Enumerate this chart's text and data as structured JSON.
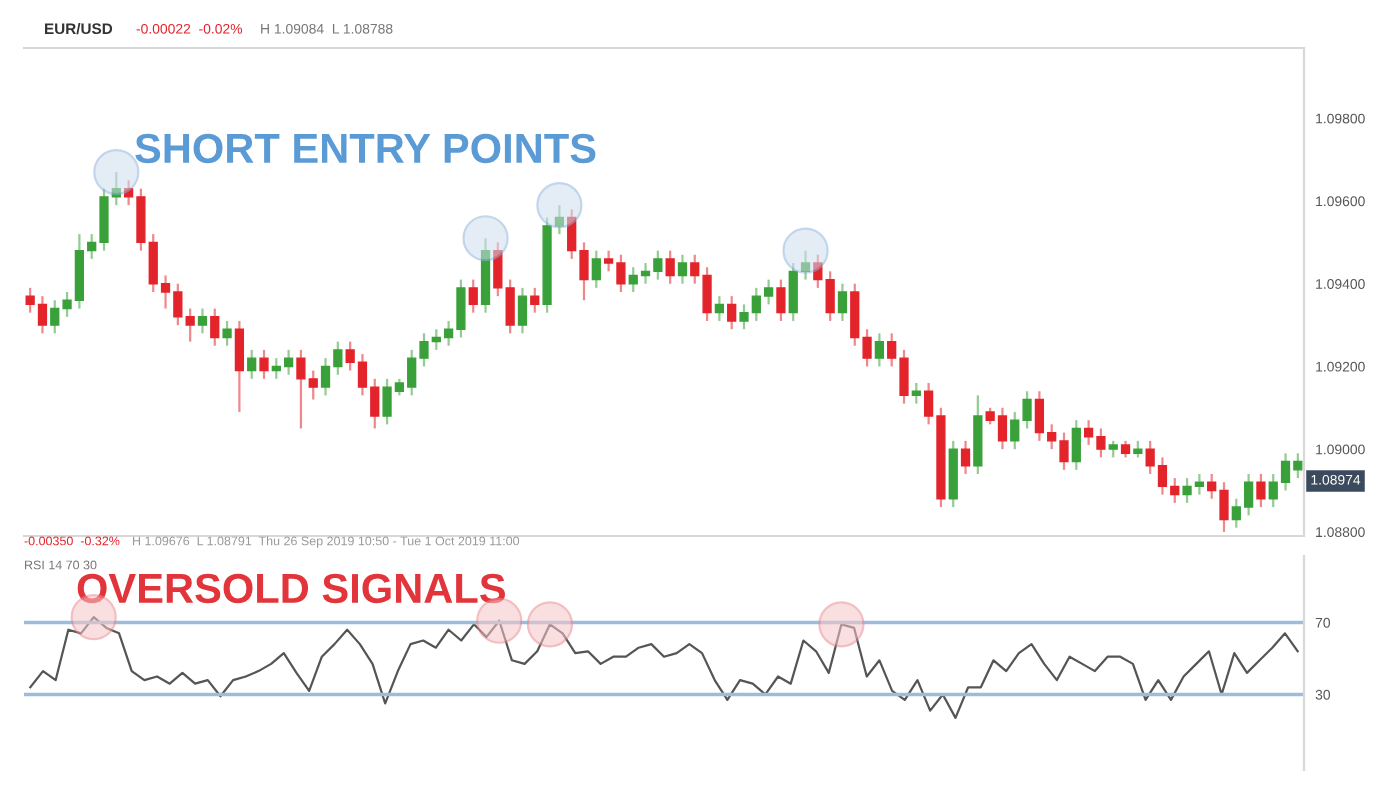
{
  "chart_data": [
    {
      "type": "candlestick",
      "annotations": [
        "EUR/USD",
        "-0.00022  -0.02%",
        "H 1.09084  L 1.08788",
        "SHORT ENTRY POINTS",
        "1.08974"
      ],
      "categories": [
        null,
        null,
        null,
        null,
        null,
        null,
        null,
        null,
        null,
        null,
        null,
        null,
        null,
        null,
        null,
        null,
        null,
        null,
        null,
        null,
        null,
        null,
        null,
        null,
        null,
        null,
        null,
        null,
        null,
        null,
        null,
        null,
        null,
        null,
        null,
        null,
        null,
        null,
        null,
        null,
        null,
        null,
        null,
        null,
        null,
        null,
        null,
        null,
        null,
        null,
        null,
        null,
        null,
        null,
        null,
        null,
        null,
        null,
        null,
        null,
        null,
        null,
        null,
        null,
        null,
        null,
        null,
        null,
        null,
        null,
        null,
        null,
        null,
        null,
        null,
        null,
        null,
        null,
        null,
        null,
        null,
        null,
        null,
        null,
        null,
        null,
        null,
        null,
        null,
        null,
        null,
        null,
        null,
        null,
        null,
        null,
        null,
        null,
        null,
        null,
        null,
        null,
        null,
        null
      ],
      "ohlc": [
        [
          1.0937,
          1.0939,
          1.0933,
          1.0935
        ],
        [
          1.0935,
          1.0937,
          1.0928,
          1.093
        ],
        [
          1.093,
          1.0936,
          1.0928,
          1.0934
        ],
        [
          1.0934,
          1.0938,
          1.0932,
          1.0936
        ],
        [
          1.0936,
          1.0952,
          1.0934,
          1.0948
        ],
        [
          1.0948,
          1.0952,
          1.0946,
          1.095
        ],
        [
          1.095,
          1.0963,
          1.0948,
          1.0961
        ],
        [
          1.0961,
          1.0967,
          1.0959,
          1.0963
        ],
        [
          1.0963,
          1.0965,
          1.0959,
          1.0961
        ],
        [
          1.0961,
          1.0963,
          1.0948,
          1.095
        ],
        [
          1.095,
          1.0952,
          1.0938,
          1.094
        ],
        [
          1.094,
          1.0942,
          1.0934,
          1.0938
        ],
        [
          1.0938,
          1.094,
          1.093,
          1.0932
        ],
        [
          1.0932,
          1.0934,
          1.0926,
          1.093
        ],
        [
          1.093,
          1.0934,
          1.0928,
          1.0932
        ],
        [
          1.0932,
          1.0934,
          1.0925,
          1.0927
        ],
        [
          1.0927,
          1.0931,
          1.0925,
          1.0929
        ],
        [
          1.0929,
          1.0931,
          1.0909,
          1.0919
        ],
        [
          1.0919,
          1.0924,
          1.0917,
          1.0922
        ],
        [
          1.0922,
          1.0924,
          1.0917,
          1.0919
        ],
        [
          1.0919,
          1.0922,
          1.0917,
          1.092
        ],
        [
          1.092,
          1.0924,
          1.0918,
          1.0922
        ],
        [
          1.0922,
          1.0924,
          1.0905,
          1.0917
        ],
        [
          1.0917,
          1.0919,
          1.0912,
          1.0915
        ],
        [
          1.0915,
          1.0922,
          1.0913,
          1.092
        ],
        [
          1.092,
          1.0926,
          1.0918,
          1.0924
        ],
        [
          1.0924,
          1.0926,
          1.0919,
          1.0921
        ],
        [
          1.0921,
          1.0923,
          1.0913,
          1.0915
        ],
        [
          1.0915,
          1.0917,
          1.0905,
          1.0908
        ],
        [
          1.0908,
          1.0917,
          1.0906,
          1.0915
        ],
        [
          1.0914,
          1.0917,
          1.0913,
          1.0916
        ],
        [
          1.0915,
          1.0924,
          1.0913,
          1.0922
        ],
        [
          1.0922,
          1.0928,
          1.092,
          1.0926
        ],
        [
          1.0926,
          1.0929,
          1.0924,
          1.0927
        ],
        [
          1.0927,
          1.0931,
          1.0925,
          1.0929
        ],
        [
          1.0929,
          1.0941,
          1.0927,
          1.0939
        ],
        [
          1.0939,
          1.0941,
          1.0933,
          1.0935
        ],
        [
          1.0935,
          1.0951,
          1.0933,
          1.0948
        ],
        [
          1.0948,
          1.095,
          1.0937,
          1.0939
        ],
        [
          1.0939,
          1.0941,
          1.0928,
          1.093
        ],
        [
          1.093,
          1.0939,
          1.0928,
          1.0937
        ],
        [
          1.0937,
          1.0939,
          1.0933,
          1.0935
        ],
        [
          1.0935,
          1.0956,
          1.0933,
          1.0954
        ],
        [
          1.0954,
          1.0959,
          1.0952,
          1.0956
        ],
        [
          1.0956,
          1.0958,
          1.0946,
          1.0948
        ],
        [
          1.0948,
          1.095,
          1.0936,
          1.0941
        ],
        [
          1.0941,
          1.0948,
          1.0939,
          1.0946
        ],
        [
          1.0946,
          1.0948,
          1.0943,
          1.0945
        ],
        [
          1.0945,
          1.0947,
          1.0938,
          1.094
        ],
        [
          1.094,
          1.0944,
          1.0938,
          1.0942
        ],
        [
          1.0942,
          1.0945,
          1.094,
          1.0943
        ],
        [
          1.0943,
          1.0948,
          1.0941,
          1.0946
        ],
        [
          1.0946,
          1.0948,
          1.094,
          1.0942
        ],
        [
          1.0942,
          1.0947,
          1.094,
          1.0945
        ],
        [
          1.0945,
          1.0947,
          1.094,
          1.0942
        ],
        [
          1.0942,
          1.0944,
          1.0931,
          1.0933
        ],
        [
          1.0933,
          1.0937,
          1.0931,
          1.0935
        ],
        [
          1.0935,
          1.0937,
          1.0929,
          1.0931
        ],
        [
          1.0931,
          1.0935,
          1.0929,
          1.0933
        ],
        [
          1.0933,
          1.0939,
          1.0931,
          1.0937
        ],
        [
          1.0937,
          1.0941,
          1.0935,
          1.0939
        ],
        [
          1.0939,
          1.0941,
          1.0931,
          1.0933
        ],
        [
          1.0933,
          1.0945,
          1.0931,
          1.0943
        ],
        [
          1.0943,
          1.0948,
          1.0941,
          1.0945
        ],
        [
          1.0945,
          1.0947,
          1.0939,
          1.0941
        ],
        [
          1.0941,
          1.0943,
          1.0931,
          1.0933
        ],
        [
          1.0933,
          1.094,
          1.0931,
          1.0938
        ],
        [
          1.0938,
          1.094,
          1.0925,
          1.0927
        ],
        [
          1.0927,
          1.0929,
          1.092,
          1.0922
        ],
        [
          1.0922,
          1.0928,
          1.092,
          1.0926
        ],
        [
          1.0926,
          1.0928,
          1.092,
          1.0922
        ],
        [
          1.0922,
          1.0924,
          1.0911,
          1.0913
        ],
        [
          1.0913,
          1.0916,
          1.0911,
          1.0914
        ],
        [
          1.0914,
          1.0916,
          1.0906,
          1.0908
        ],
        [
          1.0908,
          1.091,
          1.0886,
          1.0888
        ],
        [
          1.0888,
          1.0902,
          1.0886,
          1.09
        ],
        [
          1.09,
          1.0902,
          1.0894,
          1.0896
        ],
        [
          1.0896,
          1.0913,
          1.0894,
          1.0908
        ],
        [
          1.0909,
          1.091,
          1.0906,
          1.0907
        ],
        [
          1.0908,
          1.091,
          1.09,
          1.0902
        ],
        [
          1.0902,
          1.0909,
          1.09,
          1.0907
        ],
        [
          1.0907,
          1.0914,
          1.0905,
          1.0912
        ],
        [
          1.0912,
          1.0914,
          1.0902,
          1.0904
        ],
        [
          1.0904,
          1.0906,
          1.09,
          1.0902
        ],
        [
          1.0902,
          1.0904,
          1.0895,
          1.0897
        ],
        [
          1.0897,
          1.0907,
          1.0895,
          1.0905
        ],
        [
          1.0905,
          1.0907,
          1.0901,
          1.0903
        ],
        [
          1.0903,
          1.0905,
          1.0898,
          1.09
        ],
        [
          1.09,
          1.0902,
          1.0898,
          1.0901
        ],
        [
          1.0901,
          1.0902,
          1.0898,
          1.0899
        ],
        [
          1.0899,
          1.0902,
          1.0898,
          1.09
        ],
        [
          1.09,
          1.0902,
          1.0894,
          1.0896
        ],
        [
          1.0896,
          1.0898,
          1.0889,
          1.0891
        ],
        [
          1.0891,
          1.0893,
          1.0887,
          1.0889
        ],
        [
          1.0889,
          1.0893,
          1.0887,
          1.0891
        ],
        [
          1.0891,
          1.0894,
          1.0889,
          1.0892
        ],
        [
          1.0892,
          1.0894,
          1.0888,
          1.089
        ],
        [
          1.089,
          1.0892,
          1.088,
          1.0883
        ],
        [
          1.0883,
          1.0888,
          1.0881,
          1.0886
        ],
        [
          1.0886,
          1.0894,
          1.0884,
          1.0892
        ],
        [
          1.0892,
          1.0894,
          1.0886,
          1.0888
        ],
        [
          1.0888,
          1.0894,
          1.0886,
          1.0892
        ],
        [
          1.0892,
          1.0899,
          1.089,
          1.0897
        ],
        [
          1.0895,
          1.0899,
          1.0893,
          1.0897
        ]
      ],
      "ylim": [
        1.0879,
        1.0997
      ],
      "yticks": [
        {
          "value": 1.088,
          "label": "1.08800"
        },
        {
          "value": 1.09,
          "label": "1.09000"
        },
        {
          "value": 1.092,
          "label": "1.09200"
        },
        {
          "value": 1.094,
          "label": "1.09400"
        },
        {
          "value": 1.096,
          "label": "1.09600"
        },
        {
          "value": 1.098,
          "label": "1.09800"
        }
      ],
      "tick_labels": "y"
    },
    {
      "type": "line",
      "annotations": [
        "-0.00350  -0.32%",
        "H 1.09676  L 1.08791  Thu 26 Sep 2019 10:50 - Tue 1 Oct 2019 11:00",
        "RSI 14 70 30",
        "OVERSOLD SIGNALS"
      ],
      "categories": [
        null,
        null,
        null,
        null,
        null,
        null,
        null,
        null,
        null,
        null,
        null,
        null,
        null,
        null,
        null,
        null,
        null,
        null,
        null,
        null,
        null,
        null,
        null,
        null,
        null,
        null,
        null,
        null,
        null,
        null,
        null,
        null,
        null,
        null,
        null,
        null,
        null,
        null,
        null,
        null,
        null,
        null,
        null,
        null,
        null,
        null,
        null,
        null,
        null,
        null,
        null,
        null,
        null,
        null,
        null,
        null,
        null,
        null,
        null,
        null,
        null,
        null,
        null,
        null,
        null,
        null,
        null,
        null,
        null,
        null,
        null,
        null,
        null,
        null,
        null,
        null,
        null,
        null,
        null,
        null,
        null,
        null,
        null,
        null,
        null,
        null,
        null,
        null,
        null,
        null,
        null,
        null,
        null,
        null,
        null,
        null,
        null,
        null,
        null,
        null,
        null
      ],
      "series": [
        {
          "color": "#555555",
          "values": [
            34,
            43,
            38,
            66,
            64,
            73,
            67,
            64,
            43,
            38,
            40,
            36,
            42,
            36,
            38,
            29,
            38,
            40,
            43,
            47,
            53,
            42,
            32,
            51,
            58,
            66,
            58,
            47,
            25,
            43,
            58,
            60,
            56,
            66,
            60,
            69,
            62,
            71,
            49,
            47,
            54,
            69,
            64,
            53,
            54,
            47,
            51,
            51,
            56,
            58,
            51,
            53,
            58,
            53,
            38,
            27,
            38,
            36,
            30,
            40,
            36,
            60,
            54,
            42,
            69,
            67,
            40,
            49,
            32,
            27,
            38,
            21,
            30,
            17,
            34,
            34,
            49,
            43,
            53,
            58,
            47,
            38,
            51,
            47,
            43,
            51,
            51,
            47,
            27,
            38,
            27,
            40,
            47,
            54,
            30,
            53,
            42,
            49,
            56,
            64,
            54
          ]
        }
      ],
      "ylim": [
        -12,
        107
      ],
      "yticks": [
        30,
        70
      ],
      "ref_lines": [
        {
          "axis": "y",
          "value": 70,
          "color": "#9dbcdb"
        },
        {
          "axis": "y",
          "value": 30,
          "color": "#9dbcdb"
        }
      ],
      "tick_labels": "y"
    }
  ]
}
